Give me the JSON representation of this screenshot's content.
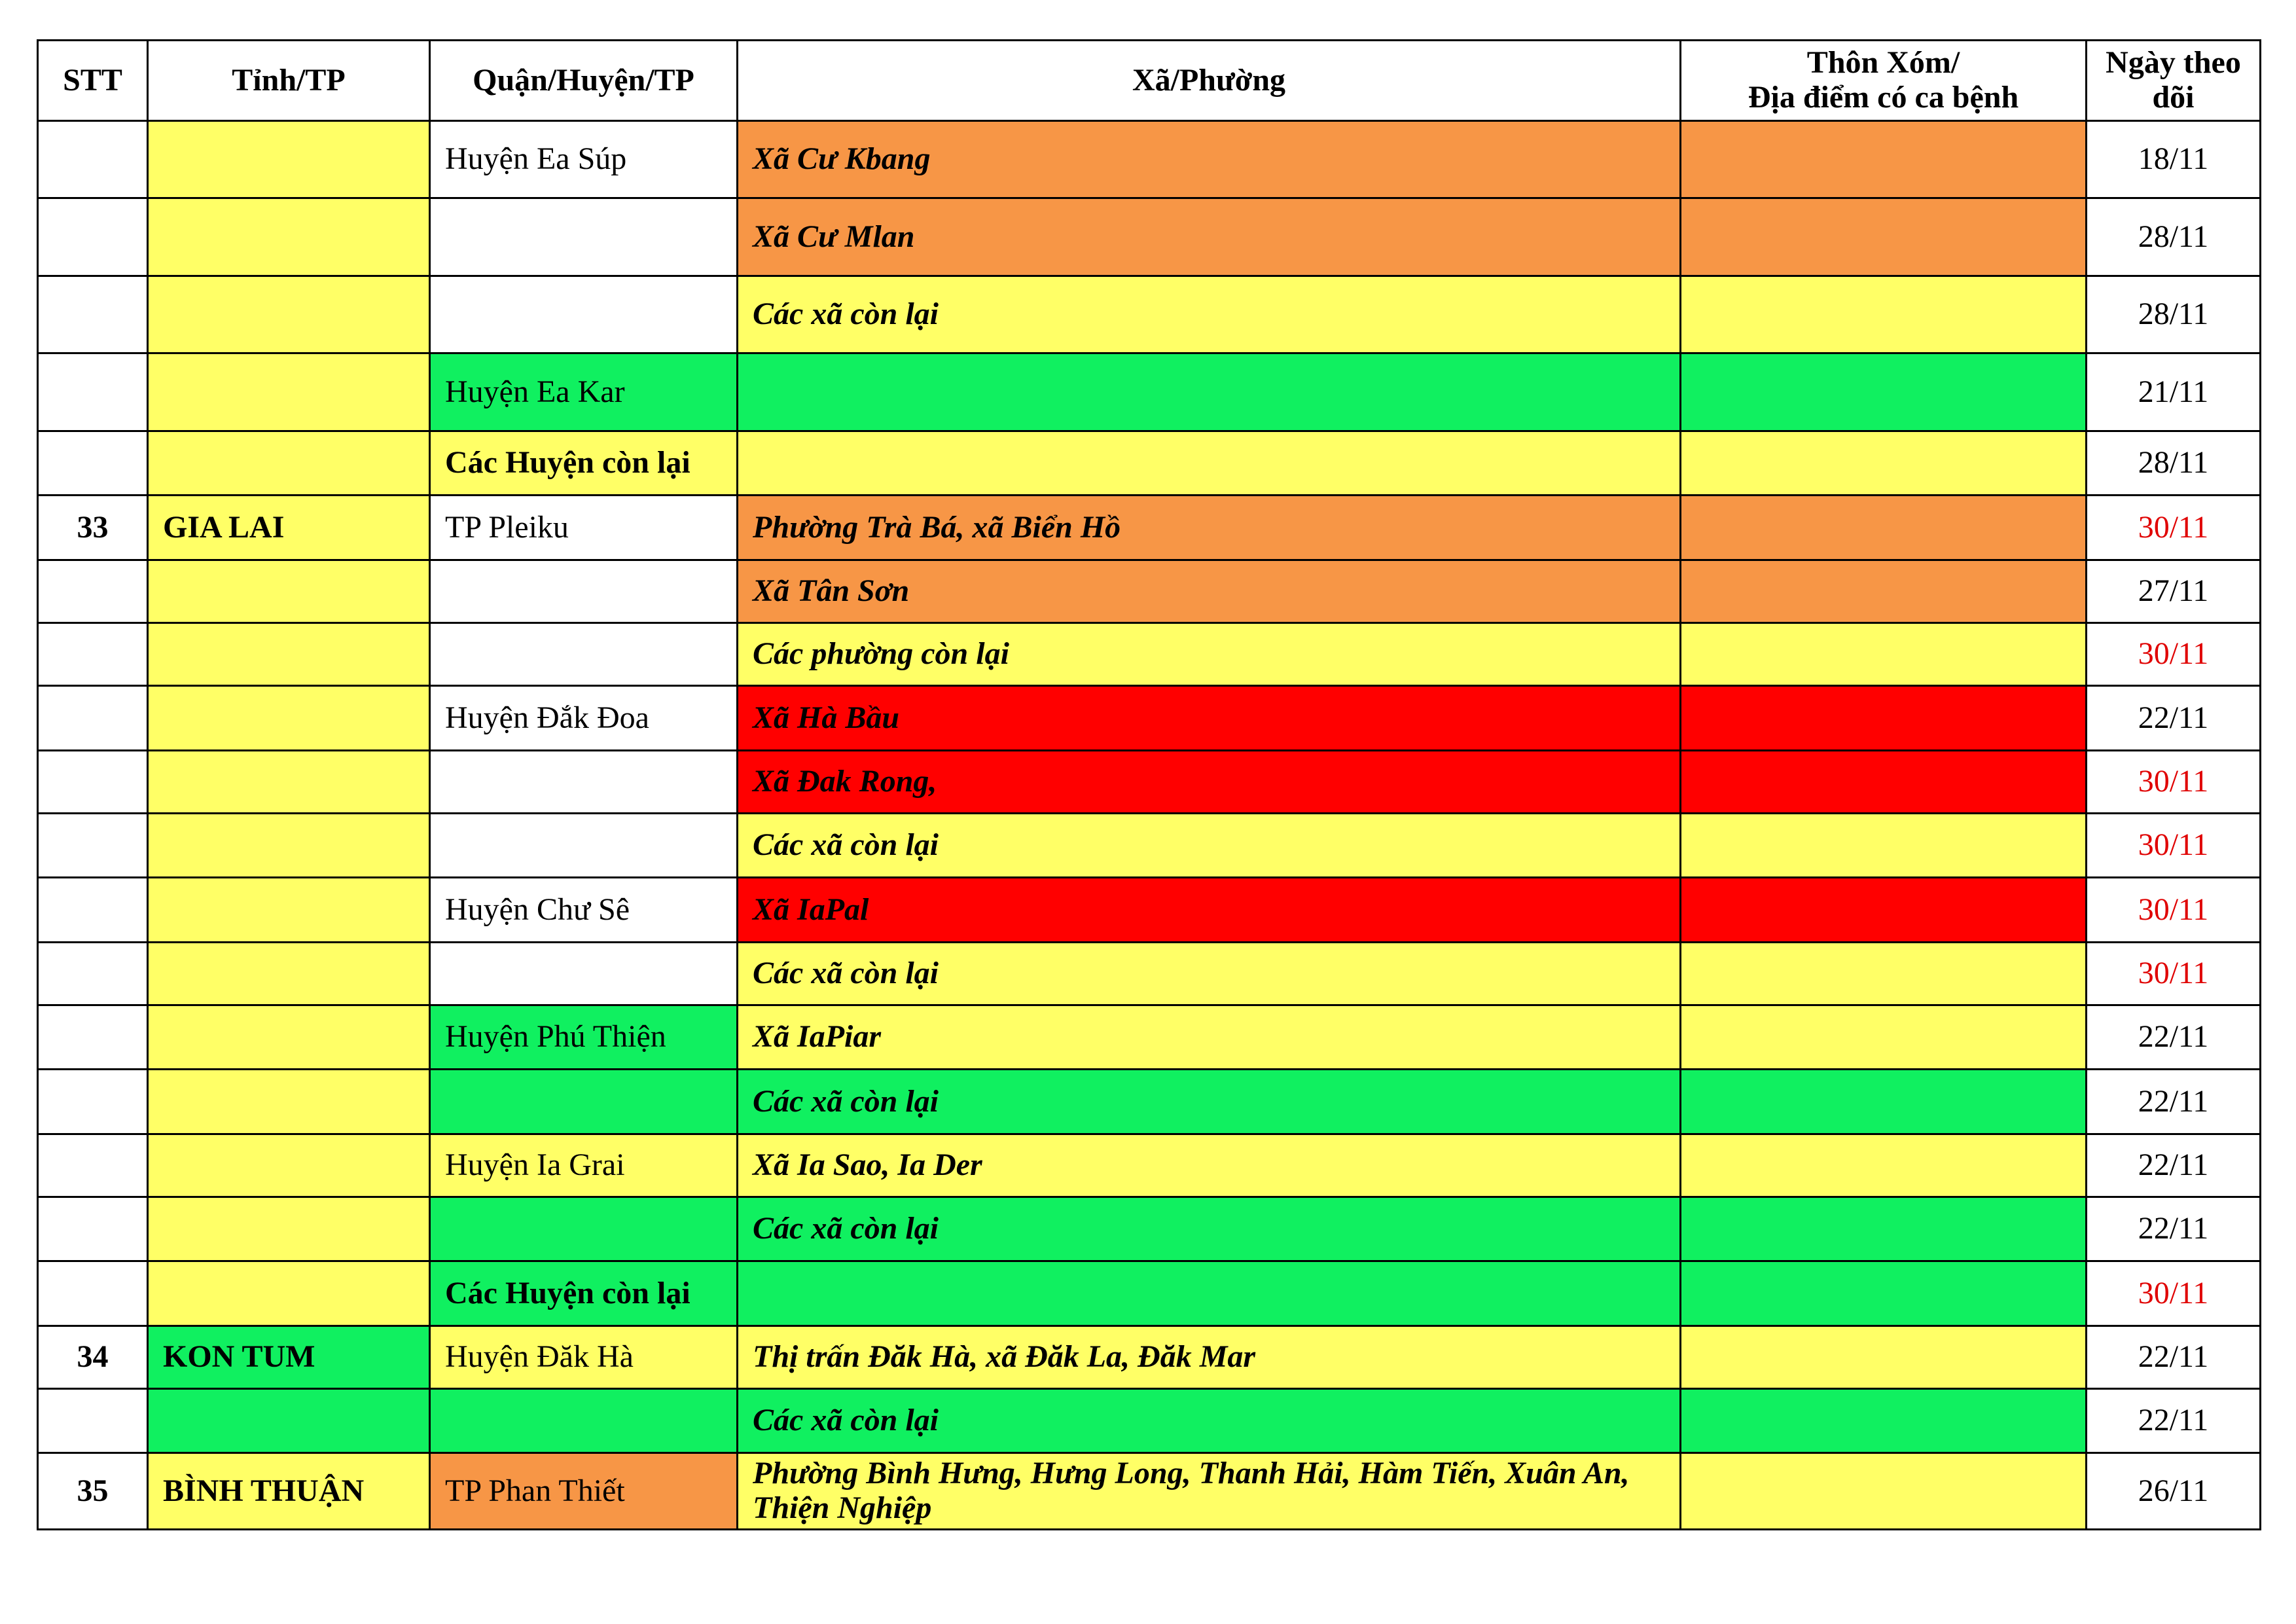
{
  "header": {
    "columns": [
      "STT",
      "Tỉnh/TP",
      "Quận/Huyện/TP",
      "Xã/Phường",
      "Thôn Xóm/\nĐịa điểm có ca bệnh",
      "Ngày theo dõi"
    ]
  },
  "rows": [
    [
      null,
      null,
      "Huyện Ea Súp",
      "Xã Cư Kbang",
      null,
      "18/11"
    ],
    [
      null,
      null,
      null,
      "Xã Cư Mlan",
      null,
      "28/11"
    ],
    [
      null,
      null,
      null,
      "Các xã còn lại",
      null,
      "28/11"
    ],
    [
      null,
      null,
      "Huyện Ea Kar",
      null,
      null,
      "21/11"
    ],
    [
      null,
      null,
      "Các Huyện còn lại",
      null,
      null,
      "28/11"
    ],
    [
      "33",
      "GIA LAI",
      "TP Pleiku",
      "Phường Trà Bá, xã Biển Hồ",
      null,
      "30/11"
    ],
    [
      null,
      null,
      null,
      "Xã Tân Sơn",
      null,
      "27/11"
    ],
    [
      null,
      null,
      null,
      "Các phường còn lại",
      null,
      "30/11"
    ],
    [
      null,
      null,
      "Huyện Đắk Đoa",
      "Xã Hà Bầu",
      null,
      "22/11"
    ],
    [
      null,
      null,
      null,
      "Xã Đak Rong,",
      null,
      "30/11"
    ],
    [
      null,
      null,
      null,
      "Các xã còn lại",
      null,
      "30/11"
    ],
    [
      null,
      null,
      "Huyện Chư Sê",
      "Xã IaPal",
      null,
      "30/11"
    ],
    [
      null,
      null,
      null,
      "Các xã còn lại",
      null,
      "30/11"
    ],
    [
      null,
      null,
      "Huyện Phú Thiện",
      "Xã IaPiar",
      null,
      "22/11"
    ],
    [
      null,
      null,
      null,
      "Các xã còn lại",
      null,
      "22/11"
    ],
    [
      null,
      null,
      "Huyện Ia Grai",
      "Xã Ia Sao, Ia Der",
      null,
      "22/11"
    ],
    [
      null,
      null,
      null,
      "Các xã còn lại",
      null,
      "22/11"
    ],
    [
      null,
      null,
      "Các Huyện còn lại",
      null,
      null,
      "30/11"
    ],
    [
      "34",
      "KON TUM",
      "Huyện Đăk Hà",
      "Thị trấn Đăk Hà, xã Đăk La, Đăk Mar",
      null,
      "22/11"
    ],
    [
      null,
      null,
      null,
      "Các xã còn lại",
      null,
      "22/11"
    ],
    [
      "35",
      "BÌNH THUẬN",
      "TP Phan Thiết",
      "Phường Bình Hưng, Hưng Long, Thanh Hải, Hàm Tiến, Xuân An, Thiện Nghiệp",
      null,
      "26/11"
    ]
  ]
}
